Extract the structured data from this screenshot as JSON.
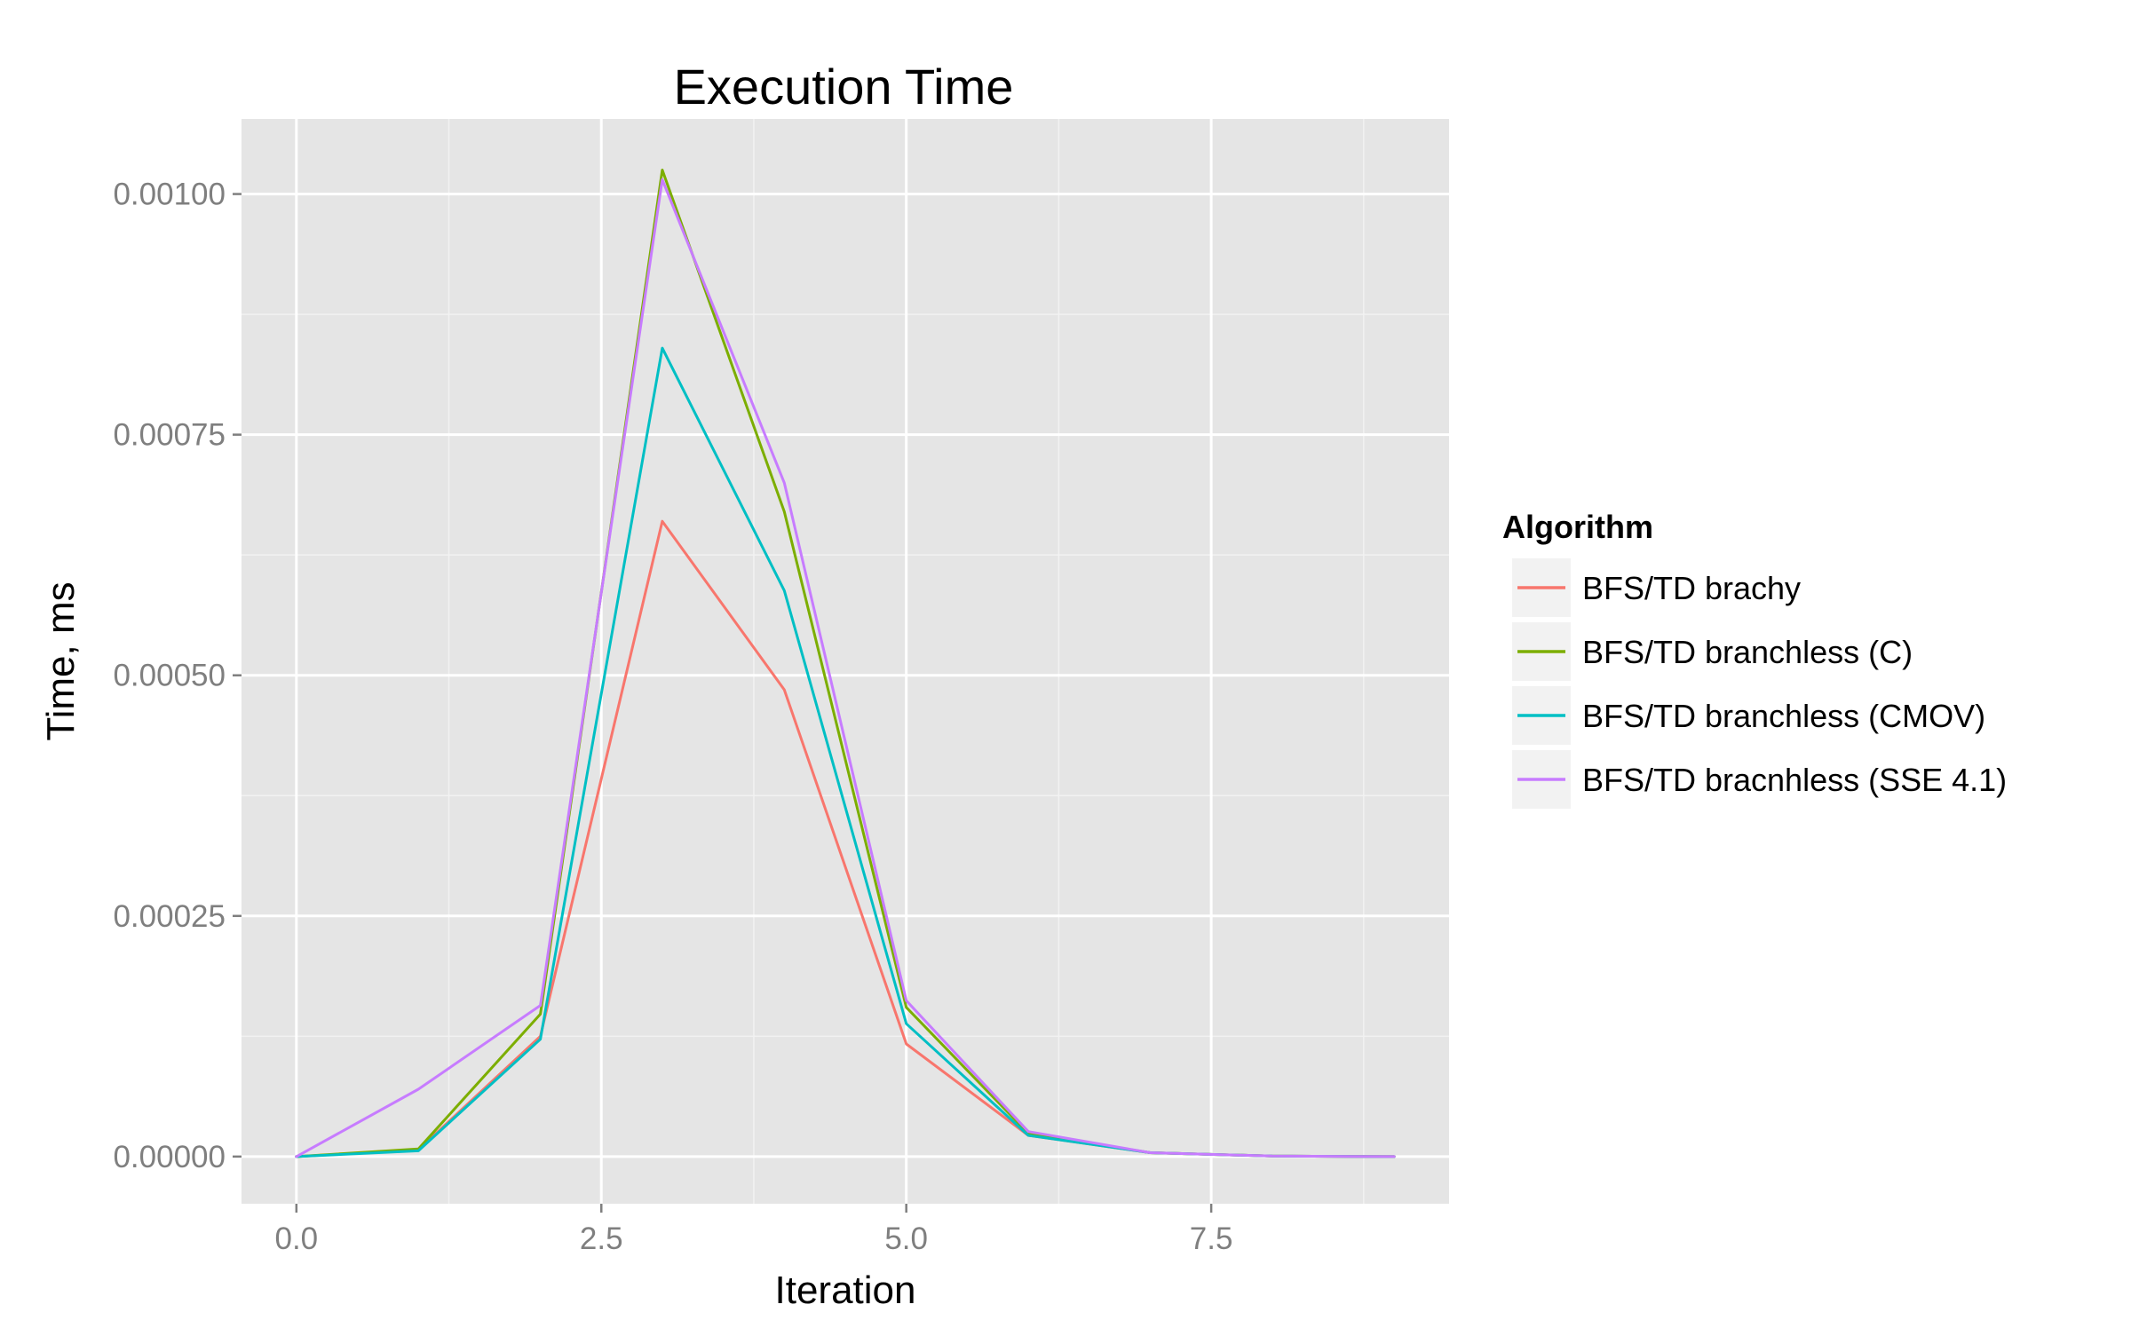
{
  "chart_data": {
    "type": "line",
    "title": "Execution Time",
    "xlabel": "Iteration",
    "ylabel": "Time, ms",
    "xlim": [
      -0.45,
      9.45
    ],
    "ylim": [
      -4.9e-05,
      0.001078
    ],
    "x_ticks": [
      {
        "value": 0.0,
        "label": "0.0"
      },
      {
        "value": 2.5,
        "label": "2.5"
      },
      {
        "value": 5.0,
        "label": "5.0"
      },
      {
        "value": 7.5,
        "label": "7.5"
      }
    ],
    "x_minor": [
      1.25,
      3.75,
      6.25,
      8.75
    ],
    "y_ticks": [
      {
        "value": 0.0,
        "label": "0.00000"
      },
      {
        "value": 0.00025,
        "label": "0.00025"
      },
      {
        "value": 0.0005,
        "label": "0.00050"
      },
      {
        "value": 0.00075,
        "label": "0.00075"
      },
      {
        "value": 0.001,
        "label": "0.00100"
      }
    ],
    "y_minor": [
      0.000125,
      0.000375,
      0.000625,
      0.000875
    ],
    "grid": true,
    "panel_color": "#e5e5e5",
    "legend": {
      "title": "Algorithm",
      "position": "right"
    },
    "x": [
      0,
      1,
      2,
      3,
      4,
      5,
      6,
      7,
      8,
      9
    ],
    "series": [
      {
        "name": "BFS/TD brachy",
        "color": "#f8766d",
        "values": [
          0.0,
          7e-06,
          0.000125,
          0.00066,
          0.000485,
          0.000117,
          2.2e-05,
          4e-06,
          5e-07,
          0.0
        ]
      },
      {
        "name": "BFS/TD branchless (C)",
        "color": "#7cae00",
        "values": [
          0.0,
          8e-06,
          0.000148,
          0.001025,
          0.00067,
          0.000155,
          2.4e-05,
          4e-06,
          5e-07,
          0.0
        ]
      },
      {
        "name": "BFS/TD branchless (CMOV)",
        "color": "#00bfc4",
        "values": [
          0.0,
          6e-06,
          0.000122,
          0.00084,
          0.000588,
          0.000138,
          2.2e-05,
          4e-06,
          5e-07,
          0.0
        ]
      },
      {
        "name": "BFS/TD bracnhless (SSE 4.1)",
        "color": "#c77cff",
        "values": [
          0.0,
          7e-05,
          0.000157,
          0.001015,
          0.0007,
          0.000162,
          2.6e-05,
          4e-06,
          5e-07,
          0.0
        ]
      }
    ]
  }
}
